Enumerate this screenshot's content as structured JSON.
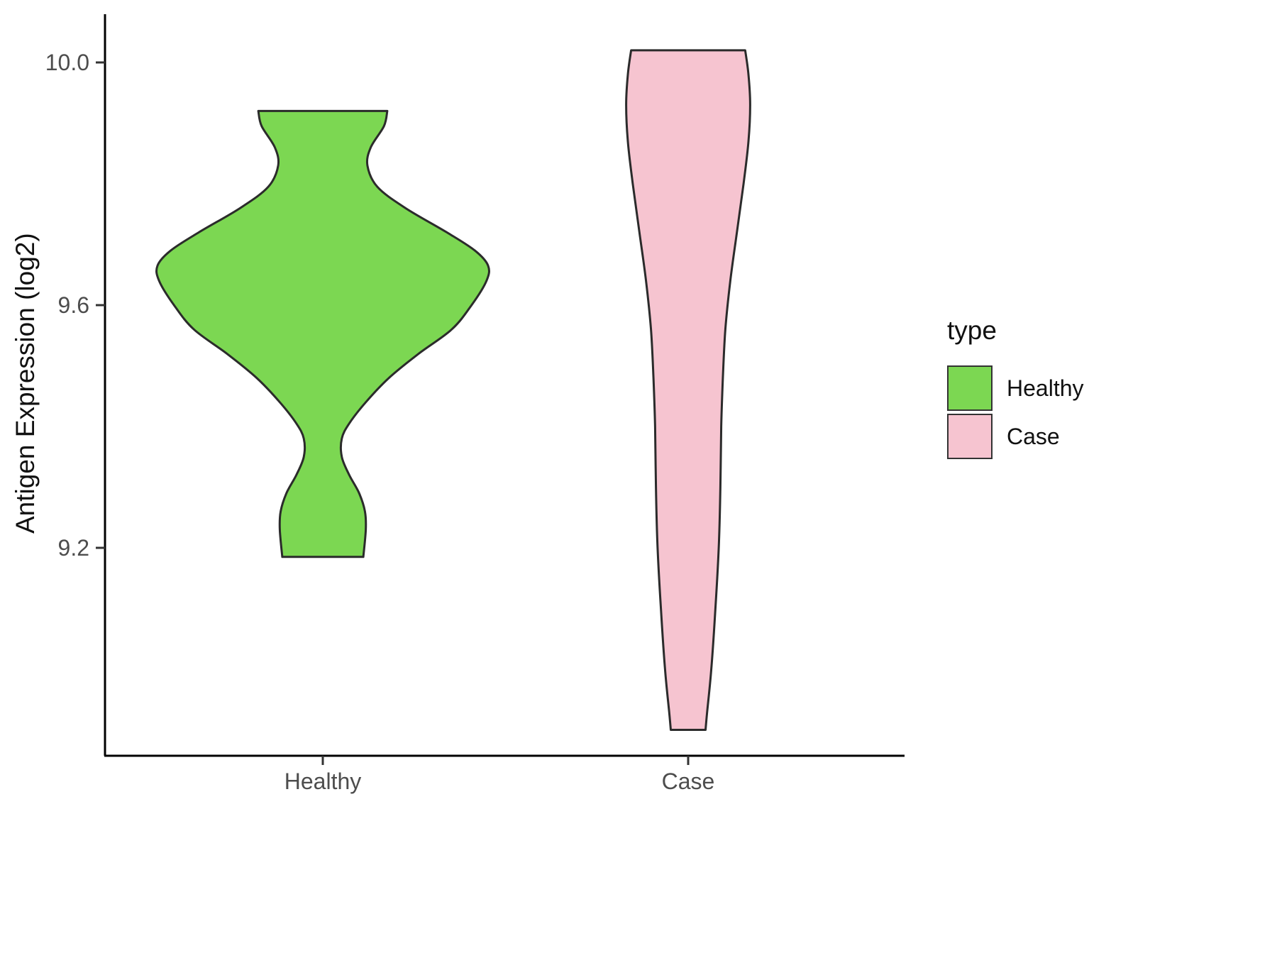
{
  "chart_data": {
    "type": "violin",
    "title": "",
    "xlabel": "",
    "ylabel": "Antigen Expression (log2)",
    "ylim": [
      8.85,
      10.08
    ],
    "grid": false,
    "yticks": [
      {
        "value": 10.0,
        "label": "10.0"
      },
      {
        "value": 9.6,
        "label": "9.6"
      },
      {
        "value": 9.2,
        "label": "9.2"
      }
    ],
    "categories": [
      "Healthy",
      "Case"
    ],
    "series": [
      {
        "name": "Healthy",
        "color": "#7CD752",
        "stroke": "#2b2b2b",
        "y_range": [
          9.185,
          9.92
        ],
        "profile": [
          [
            9.92,
            0.39
          ],
          [
            9.895,
            0.37
          ],
          [
            9.86,
            0.29
          ],
          [
            9.83,
            0.27
          ],
          [
            9.795,
            0.33
          ],
          [
            9.76,
            0.5
          ],
          [
            9.72,
            0.75
          ],
          [
            9.69,
            0.92
          ],
          [
            9.665,
            1.0
          ],
          [
            9.64,
            0.99
          ],
          [
            9.6,
            0.9
          ],
          [
            9.56,
            0.78
          ],
          [
            9.52,
            0.58
          ],
          [
            9.48,
            0.4
          ],
          [
            9.44,
            0.26
          ],
          [
            9.405,
            0.16
          ],
          [
            9.38,
            0.115
          ],
          [
            9.35,
            0.115
          ],
          [
            9.32,
            0.16
          ],
          [
            9.29,
            0.22
          ],
          [
            9.26,
            0.255
          ],
          [
            9.23,
            0.26
          ],
          [
            9.185,
            0.245
          ]
        ]
      },
      {
        "name": "Case",
        "color": "#F6C4D0",
        "stroke": "#2b2b2b",
        "y_range": [
          8.9,
          10.02
        ],
        "profile": [
          [
            10.02,
            0.345
          ],
          [
            9.98,
            0.365
          ],
          [
            9.93,
            0.375
          ],
          [
            9.87,
            0.365
          ],
          [
            9.8,
            0.335
          ],
          [
            9.72,
            0.295
          ],
          [
            9.64,
            0.255
          ],
          [
            9.56,
            0.225
          ],
          [
            9.48,
            0.21
          ],
          [
            9.4,
            0.2
          ],
          [
            9.3,
            0.195
          ],
          [
            9.2,
            0.185
          ],
          [
            9.1,
            0.165
          ],
          [
            9.0,
            0.14
          ],
          [
            8.93,
            0.115
          ],
          [
            8.9,
            0.105
          ]
        ]
      }
    ],
    "legend": {
      "title": "type",
      "position": "right",
      "entries": [
        {
          "label": "Healthy",
          "color": "#7CD752"
        },
        {
          "label": "Case",
          "color": "#F6C4D0"
        }
      ]
    }
  }
}
